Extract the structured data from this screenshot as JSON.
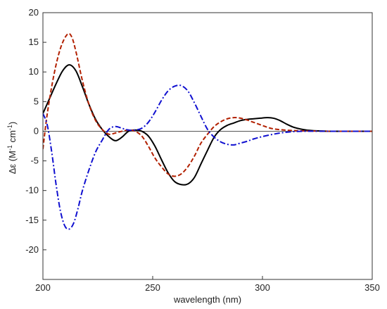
{
  "chart_data": {
    "type": "line",
    "xlabel": "wavelength (nm)",
    "ylabel_main": "Δε (M",
    "ylabel_sup1": "-1",
    "ylabel_mid": " cm",
    "ylabel_sup2": "-1",
    "ylabel_end": ")",
    "xlim": [
      200,
      350
    ],
    "ylim": [
      -25,
      20
    ],
    "xticks": [
      200,
      250,
      300,
      350
    ],
    "yticks": [
      -20,
      -15,
      -10,
      -5,
      0,
      5,
      10,
      15,
      20
    ],
    "grid": false,
    "zero_line": true,
    "series": [
      {
        "color": "#000000",
        "style": "solid",
        "x": [
          200,
          203,
          206,
          209,
          212,
          215,
          218,
          221,
          224,
          227,
          230,
          233,
          236,
          239,
          242,
          245,
          248,
          251,
          254,
          257,
          260,
          263,
          266,
          269,
          272,
          275,
          278,
          281,
          284,
          287,
          290,
          293,
          296,
          299,
          302,
          305,
          308,
          311,
          314,
          317,
          320,
          323,
          326,
          330,
          335,
          340,
          345,
          350
        ],
        "y": [
          3.0,
          5.5,
          8.0,
          10.2,
          11.2,
          10.2,
          7.5,
          4.5,
          2.0,
          0.3,
          -0.9,
          -1.6,
          -1.0,
          0.0,
          0.2,
          0.0,
          -0.8,
          -2.5,
          -4.8,
          -7.0,
          -8.5,
          -9.0,
          -8.9,
          -7.8,
          -5.5,
          -3.2,
          -1.0,
          0.3,
          1.0,
          1.4,
          1.8,
          2.0,
          2.1,
          2.2,
          2.3,
          2.2,
          1.8,
          1.2,
          0.7,
          0.4,
          0.2,
          0.1,
          0.05,
          0.0,
          0.0,
          0.0,
          0.0,
          0.0
        ]
      },
      {
        "color": "#b22000",
        "style": "dashed",
        "x": [
          200,
          202,
          205,
          208,
          211,
          213,
          215,
          218,
          221,
          224,
          227,
          230,
          233,
          236,
          239,
          242,
          245,
          248,
          251,
          254,
          257,
          260,
          263,
          266,
          269,
          272,
          275,
          278,
          281,
          284,
          287,
          290,
          293,
          296,
          299,
          302,
          305,
          310,
          315,
          320,
          330,
          340,
          350
        ],
        "y": [
          -3.0,
          3.0,
          9.5,
          14.0,
          16.3,
          16.0,
          13.5,
          8.5,
          4.5,
          1.8,
          0.3,
          -0.5,
          -0.3,
          0.0,
          0.2,
          0.0,
          -0.8,
          -2.5,
          -4.5,
          -6.0,
          -7.2,
          -7.6,
          -7.2,
          -6.0,
          -4.2,
          -2.0,
          -0.5,
          0.8,
          1.6,
          2.1,
          2.3,
          2.2,
          1.9,
          1.5,
          1.1,
          0.7,
          0.4,
          0.2,
          0.1,
          0.05,
          0.0,
          0.0,
          0.0
        ]
      },
      {
        "color": "#1010d0",
        "style": "dashdot",
        "x": [
          200,
          202,
          204,
          206,
          208,
          210,
          212,
          214,
          216,
          218,
          221,
          224,
          227,
          230,
          233,
          236,
          239,
          242,
          245,
          248,
          251,
          254,
          257,
          260,
          263,
          266,
          269,
          272,
          275,
          278,
          281,
          284,
          287,
          290,
          293,
          296,
          300,
          305,
          310,
          315,
          320,
          330,
          340,
          350
        ],
        "y": [
          3.0,
          1.0,
          -3.5,
          -9.0,
          -13.5,
          -16.0,
          -16.5,
          -15.5,
          -13.0,
          -10.0,
          -6.5,
          -3.5,
          -1.5,
          0.3,
          0.8,
          0.5,
          0.2,
          0.2,
          0.5,
          1.5,
          3.2,
          5.2,
          6.8,
          7.6,
          7.7,
          6.8,
          4.8,
          2.5,
          0.3,
          -1.0,
          -1.8,
          -2.2,
          -2.3,
          -2.0,
          -1.7,
          -1.3,
          -0.9,
          -0.5,
          -0.2,
          -0.05,
          0.0,
          0.0,
          0.0,
          0.0
        ]
      }
    ]
  }
}
